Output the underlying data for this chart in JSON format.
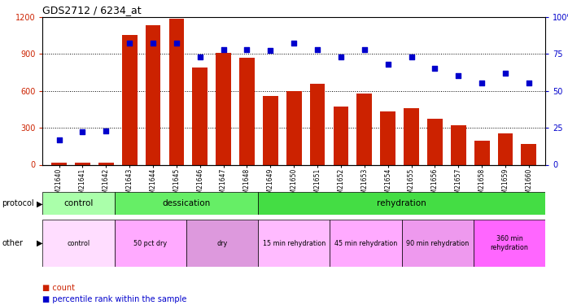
{
  "title": "GDS2712 / 6234_at",
  "samples": [
    "GSM21640",
    "GSM21641",
    "GSM21642",
    "GSM21643",
    "GSM21644",
    "GSM21645",
    "GSM21646",
    "GSM21647",
    "GSM21648",
    "GSM21649",
    "GSM21650",
    "GSM21651",
    "GSM21652",
    "GSM21653",
    "GSM21654",
    "GSM21655",
    "GSM21656",
    "GSM21657",
    "GSM21658",
    "GSM21659",
    "GSM21660"
  ],
  "counts": [
    18,
    18,
    18,
    1050,
    1130,
    1185,
    790,
    910,
    870,
    555,
    600,
    655,
    475,
    580,
    435,
    460,
    375,
    320,
    195,
    255,
    170
  ],
  "percentile_ranks": [
    17,
    22,
    23,
    82,
    82,
    82,
    73,
    78,
    78,
    77,
    82,
    78,
    73,
    78,
    68,
    73,
    65,
    60,
    55,
    62,
    55
  ],
  "bar_color": "#cc2200",
  "dot_color": "#0000cc",
  "ylim_left": [
    0,
    1200
  ],
  "ylim_right": [
    0,
    100
  ],
  "yticks_left": [
    0,
    300,
    600,
    900,
    1200
  ],
  "yticks_right": [
    0,
    25,
    50,
    75,
    100
  ],
  "protocol_groups": [
    {
      "label": "control",
      "start": 0,
      "end": 3,
      "color": "#aaffaa"
    },
    {
      "label": "dessication",
      "start": 3,
      "end": 9,
      "color": "#66ee66"
    },
    {
      "label": "rehydration",
      "start": 9,
      "end": 21,
      "color": "#44dd44"
    }
  ],
  "other_groups": [
    {
      "label": "control",
      "start": 0,
      "end": 3,
      "color": "#ffddff"
    },
    {
      "label": "50 pct dry",
      "start": 3,
      "end": 6,
      "color": "#ffaaff"
    },
    {
      "label": "dry",
      "start": 6,
      "end": 9,
      "color": "#dd99dd"
    },
    {
      "label": "15 min rehydration",
      "start": 9,
      "end": 12,
      "color": "#ffbbff"
    },
    {
      "label": "45 min rehydration",
      "start": 12,
      "end": 15,
      "color": "#ffaaff"
    },
    {
      "label": "90 min rehydration",
      "start": 15,
      "end": 18,
      "color": "#ee99ee"
    },
    {
      "label": "360 min\nrehydration",
      "start": 18,
      "end": 21,
      "color": "#ff66ff"
    }
  ],
  "legend_items": [
    {
      "label": "count",
      "color": "#cc2200"
    },
    {
      "label": "percentile rank within the sample",
      "color": "#0000cc"
    }
  ],
  "background_color": "#ffffff",
  "grid_color": "#000000"
}
